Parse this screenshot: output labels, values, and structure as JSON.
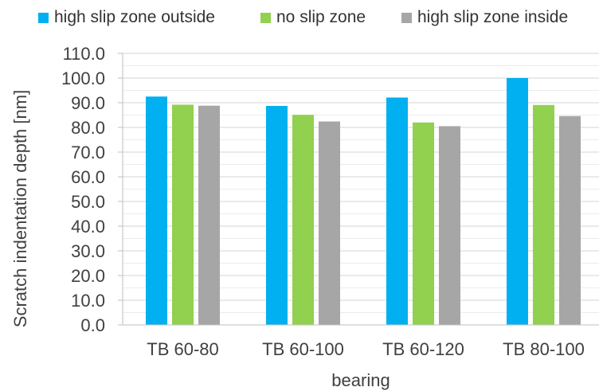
{
  "chart_data": {
    "type": "bar",
    "title": "",
    "xlabel": "bearing",
    "ylabel": "Scratch indentation depth [nm]",
    "categories": [
      "TB 60-80",
      "TB 60-100",
      "TB 60-120",
      "TB 80-100"
    ],
    "series": [
      {
        "name": "high slip zone outside",
        "color": "#00b0f0",
        "values": [
          92.5,
          88.7,
          92.1,
          100.0
        ]
      },
      {
        "name": "no slip zone",
        "color": "#92d050",
        "values": [
          89.2,
          85.1,
          82.0,
          89.1
        ]
      },
      {
        "name": "high slip zone inside",
        "color": "#a6a6a6",
        "values": [
          88.8,
          82.4,
          80.5,
          84.6
        ]
      }
    ],
    "ylim": [
      0,
      110
    ],
    "yticks": [
      "0.0",
      "10.0",
      "20.0",
      "30.0",
      "40.0",
      "50.0",
      "60.0",
      "70.0",
      "80.0",
      "90.0",
      "100.0",
      "110.0"
    ],
    "ytick_values": [
      0,
      10,
      20,
      30,
      40,
      50,
      60,
      70,
      80,
      90,
      100,
      110
    ],
    "grid": true,
    "legend_position": "top"
  }
}
